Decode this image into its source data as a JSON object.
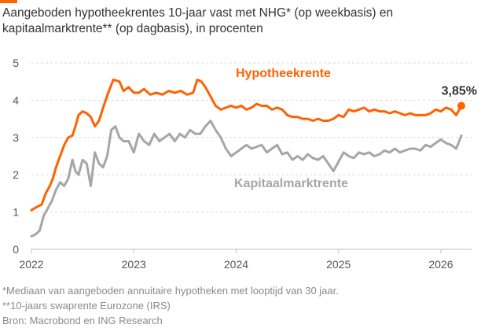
{
  "title_line1": "Aangeboden hypotheekrentes 10-jaar vast met NHG* (op weekbasis) en",
  "title_line2": "kapitaalmarktrente** (op dagbasis), in procenten",
  "footnotes": [
    "*Mediaan van aangeboden annuitaire hypotheken met looptijd van 30 jaar.",
    "**10-jaars swaprente Eurozone (IRS)",
    "Bron: Macrobond en ING Research"
  ],
  "colors": {
    "accent": "#ff6200",
    "hypotheek": "#ff6200",
    "kapitaal": "#a6a6a6",
    "grid": "#d9d9d9",
    "text": "#333333"
  },
  "chart_data": {
    "type": "line",
    "ylim": [
      0,
      5
    ],
    "yticks": [
      "0",
      "1",
      "2",
      "3",
      "4",
      "5"
    ],
    "xlim": [
      2022.0,
      2026.3
    ],
    "xticks": [
      {
        "value": 2022,
        "label": "2022"
      },
      {
        "value": 2023,
        "label": "2023"
      },
      {
        "value": 2024,
        "label": "2024"
      },
      {
        "value": 2025,
        "label": "2025"
      },
      {
        "value": 2026,
        "label": "2026"
      }
    ],
    "grid": true,
    "end_label": "3,85%",
    "series": [
      {
        "name": "Hypotheekrente",
        "color": "#ff6200",
        "x": [
          2022.0,
          2022.06,
          2022.1,
          2022.14,
          2022.18,
          2022.21,
          2022.24,
          2022.28,
          2022.32,
          2022.36,
          2022.4,
          2022.43,
          2022.46,
          2022.5,
          2022.54,
          2022.58,
          2022.62,
          2022.66,
          2022.7,
          2022.75,
          2022.8,
          2022.86,
          2022.9,
          2022.95,
          2023.0,
          2023.05,
          2023.1,
          2023.16,
          2023.22,
          2023.28,
          2023.34,
          2023.4,
          2023.46,
          2023.52,
          2023.58,
          2023.62,
          2023.66,
          2023.7,
          2023.75,
          2023.8,
          2023.85,
          2023.9,
          2023.95,
          2024.0,
          2024.05,
          2024.1,
          2024.15,
          2024.2,
          2024.25,
          2024.3,
          2024.35,
          2024.4,
          2024.45,
          2024.5,
          2024.55,
          2024.6,
          2024.65,
          2024.7,
          2024.75,
          2024.8,
          2024.85,
          2024.9,
          2024.95,
          2025.0,
          2025.05,
          2025.1,
          2025.15,
          2025.2,
          2025.25,
          2025.3,
          2025.35,
          2025.4,
          2025.45,
          2025.5,
          2025.55,
          2025.6,
          2025.65,
          2025.7,
          2025.75,
          2025.8,
          2025.85,
          2025.9,
          2025.95,
          2026.0,
          2026.05,
          2026.1,
          2026.15,
          2026.2
        ],
        "values": [
          1.05,
          1.15,
          1.2,
          1.5,
          1.7,
          1.9,
          2.2,
          2.5,
          2.8,
          3.0,
          3.05,
          3.3,
          3.6,
          3.7,
          3.65,
          3.55,
          3.3,
          3.45,
          3.8,
          4.2,
          4.55,
          4.5,
          4.25,
          4.35,
          4.2,
          4.2,
          4.3,
          4.15,
          4.2,
          4.15,
          4.25,
          4.2,
          4.25,
          4.15,
          4.2,
          4.55,
          4.5,
          4.35,
          4.1,
          3.85,
          3.75,
          3.8,
          3.85,
          3.8,
          3.85,
          3.75,
          3.8,
          3.9,
          3.85,
          3.85,
          3.75,
          3.8,
          3.75,
          3.6,
          3.55,
          3.55,
          3.5,
          3.5,
          3.45,
          3.5,
          3.45,
          3.45,
          3.5,
          3.6,
          3.55,
          3.75,
          3.7,
          3.75,
          3.8,
          3.7,
          3.75,
          3.7,
          3.7,
          3.65,
          3.7,
          3.65,
          3.6,
          3.65,
          3.6,
          3.6,
          3.6,
          3.65,
          3.75,
          3.7,
          3.8,
          3.75,
          3.6,
          3.85
        ]
      },
      {
        "name": "Kapitaalmarktrente",
        "color": "#a6a6a6",
        "x": [
          2022.0,
          2022.04,
          2022.08,
          2022.12,
          2022.16,
          2022.2,
          2022.24,
          2022.28,
          2022.32,
          2022.36,
          2022.4,
          2022.43,
          2022.46,
          2022.5,
          2022.54,
          2022.58,
          2022.62,
          2022.66,
          2022.7,
          2022.74,
          2022.78,
          2022.82,
          2022.86,
          2022.9,
          2022.95,
          2023.0,
          2023.05,
          2023.1,
          2023.15,
          2023.2,
          2023.25,
          2023.3,
          2023.35,
          2023.4,
          2023.45,
          2023.5,
          2023.55,
          2023.6,
          2023.65,
          2023.7,
          2023.75,
          2023.8,
          2023.85,
          2023.9,
          2023.95,
          2024.0,
          2024.05,
          2024.1,
          2024.15,
          2024.2,
          2024.25,
          2024.3,
          2024.35,
          2024.4,
          2024.45,
          2024.5,
          2024.55,
          2024.6,
          2024.65,
          2024.7,
          2024.75,
          2024.8,
          2024.85,
          2024.9,
          2024.95,
          2025.0,
          2025.05,
          2025.1,
          2025.15,
          2025.2,
          2025.25,
          2025.3,
          2025.35,
          2025.4,
          2025.45,
          2025.5,
          2025.55,
          2025.6,
          2025.65,
          2025.7,
          2025.75,
          2025.8,
          2025.85,
          2025.9,
          2025.95,
          2026.0,
          2026.05,
          2026.1,
          2026.15,
          2026.2
        ],
        "values": [
          0.35,
          0.4,
          0.5,
          0.9,
          1.1,
          1.3,
          1.6,
          1.8,
          1.7,
          1.9,
          2.4,
          2.1,
          2.0,
          2.4,
          2.3,
          1.7,
          2.6,
          2.3,
          2.2,
          2.5,
          3.2,
          3.3,
          3.0,
          2.9,
          2.9,
          2.6,
          3.1,
          2.9,
          2.8,
          3.1,
          2.9,
          3.0,
          3.1,
          2.9,
          3.1,
          3.0,
          3.2,
          3.1,
          3.1,
          3.3,
          3.45,
          3.2,
          3.0,
          2.7,
          2.5,
          2.6,
          2.7,
          2.8,
          2.7,
          2.75,
          2.8,
          2.6,
          2.7,
          2.8,
          2.55,
          2.6,
          2.4,
          2.5,
          2.4,
          2.55,
          2.45,
          2.4,
          2.5,
          2.3,
          2.1,
          2.35,
          2.6,
          2.5,
          2.45,
          2.6,
          2.55,
          2.6,
          2.5,
          2.55,
          2.65,
          2.6,
          2.7,
          2.6,
          2.65,
          2.7,
          2.7,
          2.65,
          2.8,
          2.75,
          2.85,
          2.95,
          2.85,
          2.8,
          2.7,
          3.05
        ]
      }
    ]
  }
}
